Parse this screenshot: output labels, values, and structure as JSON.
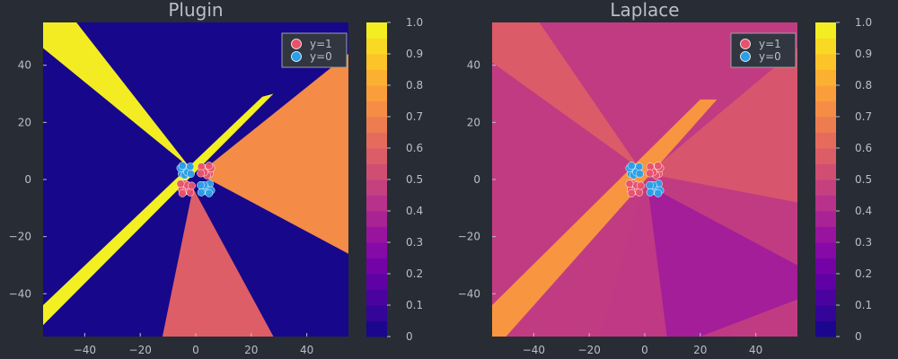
{
  "chart_data": [
    {
      "type": "contour",
      "title": "Plugin",
      "xlabel": "",
      "ylabel": "",
      "xlim": [
        -55,
        55
      ],
      "ylim": [
        -55,
        55
      ],
      "xticks": [
        -40,
        -20,
        0,
        20,
        40
      ],
      "yticks": [
        -40,
        -20,
        0,
        20,
        40
      ],
      "colorbar": {
        "range": [
          0,
          1
        ],
        "levels": 20,
        "ticks": [
          "0",
          "0.1",
          "0.2",
          "0.3",
          "0.4",
          "0.5",
          "0.6",
          "0.7",
          "0.8",
          "0.9",
          "1.0"
        ]
      },
      "legend": {
        "position": "top-right",
        "entries": [
          {
            "label": "y=1",
            "color": "#e8526b"
          },
          {
            "label": "y=0",
            "color": "#2b9fe8"
          }
        ]
      },
      "regions": [
        {
          "name": "background",
          "value": 0.02
        },
        {
          "name": "upper-left-wedge",
          "value": 0.97
        },
        {
          "name": "right-wedge",
          "value": 0.72
        },
        {
          "name": "bottom-wedge",
          "value": 0.58
        },
        {
          "name": "diagonal-band",
          "value": 0.98
        }
      ],
      "series": [
        {
          "name": "y=1",
          "color": "#e8526b",
          "points": [
            [
              -4.5,
              -2.5
            ],
            [
              -5.0,
              -3.5
            ],
            [
              -3.5,
              -4.0
            ],
            [
              -4.0,
              -1.5
            ],
            [
              -2.5,
              -3.0
            ],
            [
              -3.0,
              -2.0
            ],
            [
              -5.5,
              -1.5
            ],
            [
              -2.0,
              -4.5
            ],
            [
              -4.8,
              -4.8
            ],
            [
              -1.5,
              -2.2
            ],
            [
              4.5,
              3.0
            ],
            [
              3.5,
              4.0
            ],
            [
              5.0,
              2.0
            ],
            [
              4.0,
              1.5
            ],
            [
              2.5,
              3.5
            ],
            [
              3.0,
              2.5
            ],
            [
              5.5,
              4.0
            ],
            [
              2.0,
              4.5
            ],
            [
              4.8,
              4.8
            ],
            [
              1.8,
              2.2
            ]
          ]
        },
        {
          "name": "y=0",
          "color": "#2b9fe8",
          "points": [
            [
              -4.5,
              3.0
            ],
            [
              -3.5,
              4.0
            ],
            [
              -5.0,
              2.0
            ],
            [
              -4.0,
              1.5
            ],
            [
              -2.5,
              3.5
            ],
            [
              -3.0,
              2.5
            ],
            [
              -5.5,
              4.0
            ],
            [
              -2.0,
              4.5
            ],
            [
              -4.8,
              4.8
            ],
            [
              -1.8,
              2.0
            ],
            [
              4.5,
              -2.5
            ],
            [
              3.5,
              -4.0
            ],
            [
              5.0,
              -1.5
            ],
            [
              4.0,
              -3.5
            ],
            [
              2.5,
              -3.0
            ],
            [
              3.0,
              -2.0
            ],
            [
              5.5,
              -3.8
            ],
            [
              2.0,
              -4.5
            ],
            [
              4.8,
              -4.8
            ],
            [
              1.8,
              -2.0
            ]
          ]
        }
      ]
    },
    {
      "type": "contour",
      "title": "Laplace",
      "xlabel": "",
      "ylabel": "",
      "xlim": [
        -55,
        55
      ],
      "ylim": [
        -55,
        55
      ],
      "xticks": [
        -40,
        -20,
        0,
        20,
        40
      ],
      "yticks": [
        -40,
        -20,
        0,
        20,
        40
      ],
      "colorbar": {
        "range": [
          0,
          1
        ],
        "levels": 20,
        "ticks": [
          "0",
          "0.1",
          "0.2",
          "0.3",
          "0.4",
          "0.5",
          "0.6",
          "0.7",
          "0.8",
          "0.9",
          "1.0"
        ]
      },
      "legend": {
        "position": "top-right",
        "entries": [
          {
            "label": "y=1",
            "color": "#e8526b"
          },
          {
            "label": "y=0",
            "color": "#2b9fe8"
          }
        ]
      },
      "regions": [
        {
          "name": "background",
          "value": 0.46
        },
        {
          "name": "upper-left-wedge",
          "value": 0.57
        },
        {
          "name": "right-wedge",
          "value": 0.55
        },
        {
          "name": "bottom-wedge",
          "value": 0.45
        },
        {
          "name": "lower-right-band",
          "value": 0.36
        },
        {
          "name": "diagonal-band",
          "value": 0.75
        }
      ],
      "series": [
        {
          "name": "y=1",
          "color": "#e8526b",
          "points": [
            [
              -4.5,
              -2.5
            ],
            [
              -5.0,
              -3.5
            ],
            [
              -3.5,
              -4.0
            ],
            [
              -4.0,
              -1.5
            ],
            [
              -2.5,
              -3.0
            ],
            [
              -3.0,
              -2.0
            ],
            [
              -5.5,
              -1.5
            ],
            [
              -2.0,
              -4.5
            ],
            [
              -4.8,
              -4.8
            ],
            [
              -1.5,
              -2.2
            ],
            [
              4.5,
              3.0
            ],
            [
              3.5,
              4.0
            ],
            [
              5.0,
              2.0
            ],
            [
              4.0,
              1.5
            ],
            [
              2.5,
              3.5
            ],
            [
              3.0,
              2.5
            ],
            [
              5.5,
              4.0
            ],
            [
              2.0,
              4.5
            ],
            [
              4.8,
              4.8
            ],
            [
              1.8,
              2.2
            ]
          ]
        },
        {
          "name": "y=0",
          "color": "#2b9fe8",
          "points": [
            [
              -4.5,
              3.0
            ],
            [
              -3.5,
              4.0
            ],
            [
              -5.0,
              2.0
            ],
            [
              -4.0,
              1.5
            ],
            [
              -2.5,
              3.5
            ],
            [
              -3.0,
              2.5
            ],
            [
              -5.5,
              4.0
            ],
            [
              -2.0,
              4.5
            ],
            [
              -4.8,
              4.8
            ],
            [
              -1.8,
              2.0
            ],
            [
              4.5,
              -2.5
            ],
            [
              3.5,
              -4.0
            ],
            [
              5.0,
              -1.5
            ],
            [
              4.0,
              -3.5
            ],
            [
              2.5,
              -3.0
            ],
            [
              3.0,
              -2.0
            ],
            [
              5.5,
              -3.8
            ],
            [
              2.0,
              -4.5
            ],
            [
              4.8,
              -4.8
            ],
            [
              1.8,
              -2.0
            ]
          ]
        }
      ]
    }
  ]
}
